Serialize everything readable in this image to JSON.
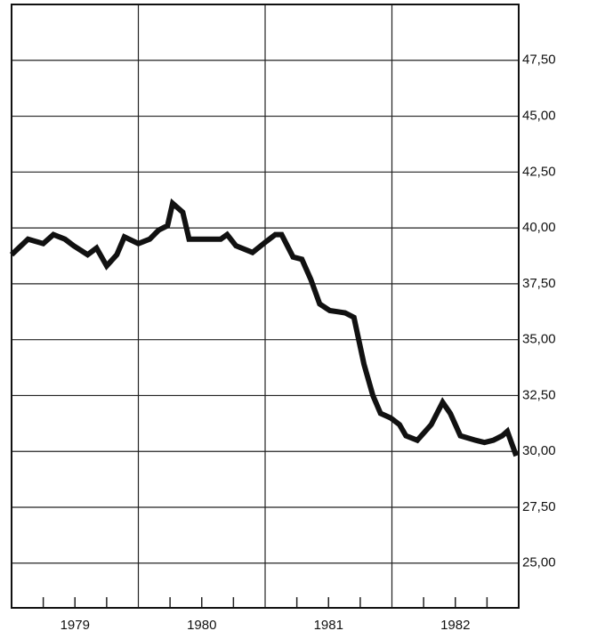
{
  "chart_data": {
    "type": "line",
    "x": [
      1979.0,
      1979.13,
      1979.25,
      1979.33,
      1979.42,
      1979.49,
      1979.6,
      1979.67,
      1979.75,
      1979.83,
      1979.89,
      1980.0,
      1980.09,
      1980.16,
      1980.23,
      1980.27,
      1980.35,
      1980.4,
      1980.51,
      1980.65,
      1980.7,
      1980.77,
      1980.9,
      1981.01,
      1981.08,
      1981.13,
      1981.22,
      1981.29,
      1981.36,
      1981.43,
      1981.51,
      1981.63,
      1981.7,
      1981.78,
      1981.85,
      1981.91,
      1981.99,
      1982.06,
      1982.11,
      1982.2,
      1982.31,
      1982.4,
      1982.46,
      1982.54,
      1982.66,
      1982.73,
      1982.8,
      1982.87,
      1982.91,
      1982.98
    ],
    "series": [
      {
        "color": "#111111",
        "values": [
          38.8,
          39.5,
          39.3,
          39.7,
          39.5,
          39.2,
          38.8,
          39.1,
          38.3,
          38.8,
          39.6,
          39.3,
          39.5,
          39.9,
          40.1,
          41.1,
          40.7,
          39.5,
          39.5,
          39.5,
          39.7,
          39.2,
          38.9,
          39.4,
          39.7,
          39.7,
          38.7,
          38.6,
          37.7,
          36.6,
          36.3,
          36.2,
          36.0,
          33.9,
          32.5,
          31.7,
          31.5,
          31.2,
          30.7,
          30.5,
          31.2,
          32.2,
          31.7,
          30.7,
          30.5,
          30.4,
          30.5,
          30.7,
          30.9,
          29.8
        ]
      }
    ],
    "xlim": [
      1979,
      1983
    ],
    "xticks": [
      {
        "value": 1979.5,
        "label": "1979"
      },
      {
        "value": 1980.5,
        "label": "1980"
      },
      {
        "value": 1981.5,
        "label": "1981"
      },
      {
        "value": 1982.5,
        "label": "1982"
      }
    ],
    "ylim": [
      23,
      50
    ],
    "yticks": [
      {
        "value": 25,
        "label": "25,00"
      },
      {
        "value": 27.5,
        "label": "27,50"
      },
      {
        "value": 30,
        "label": "30,00"
      },
      {
        "value": 32.5,
        "label": "32,50"
      },
      {
        "value": 35,
        "label": "35,00"
      },
      {
        "value": 37.5,
        "label": "37,50"
      },
      {
        "value": 40,
        "label": "40,00"
      },
      {
        "value": 42.5,
        "label": "42,50"
      },
      {
        "value": 45,
        "label": "45,00"
      },
      {
        "value": 47.5,
        "label": "47,50"
      }
    ],
    "grid": true
  }
}
